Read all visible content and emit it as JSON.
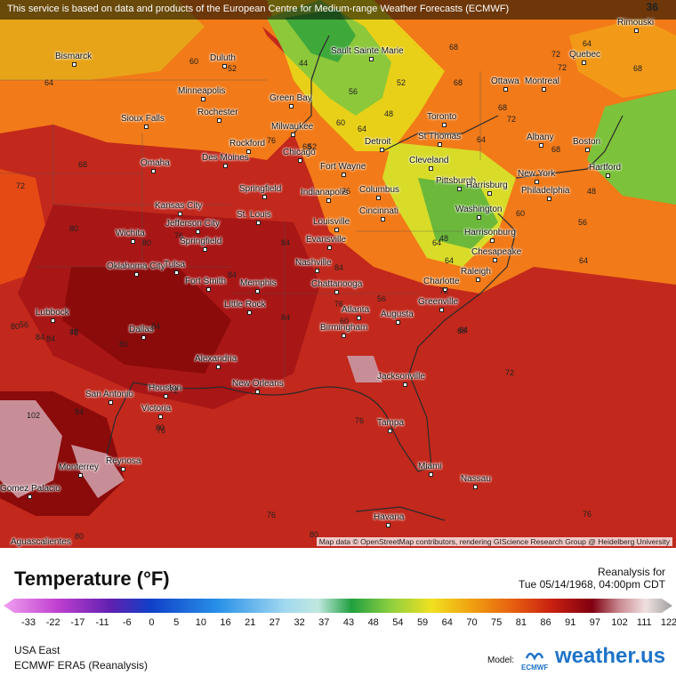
{
  "banner": "This service is based on data and products of the European Centre for Medium-range Weather Forecasts (ECMWF)",
  "corner_value": "36",
  "attribution": "Map data © OpenStreetMap contributors, rendering GIScience Research Group @ Heidelberg University",
  "colors": {
    "hot_dark": "#8b0a0a",
    "hot": "#c2281c",
    "warm": "#e64a14",
    "orange": "#f27a18",
    "yellow": "#e8d018",
    "green": "#3fa83a",
    "pink": "#c88e97"
  },
  "cities": [
    {
      "name": "Bismarck"
    },
    {
      "name": "Duluth"
    },
    {
      "name": "Sault Sainte Marie"
    },
    {
      "name": "Rimouski"
    },
    {
      "name": "Quebec"
    },
    {
      "name": "Ottawa"
    },
    {
      "name": "Montreal"
    },
    {
      "name": "Minneapolis"
    },
    {
      "name": "Green Bay"
    },
    {
      "name": "Rochester"
    },
    {
      "name": "Milwaukee"
    },
    {
      "name": "Toronto"
    },
    {
      "name": "Sioux Falls"
    },
    {
      "name": "Rockford"
    },
    {
      "name": "Chicago"
    },
    {
      "name": "Detroit"
    },
    {
      "name": "St Thomas"
    },
    {
      "name": "Albany"
    },
    {
      "name": "Boston"
    },
    {
      "name": "Des Moines"
    },
    {
      "name": "Omaha"
    },
    {
      "name": "Fort Wayne"
    },
    {
      "name": "Cleveland"
    },
    {
      "name": "Hartford"
    },
    {
      "name": "New York"
    },
    {
      "name": "Springfield"
    },
    {
      "name": "Indianapolis"
    },
    {
      "name": "Columbus"
    },
    {
      "name": "Pittsburgh"
    },
    {
      "name": "Harrisburg"
    },
    {
      "name": "Philadelphia"
    },
    {
      "name": "Kansas City"
    },
    {
      "name": "Jefferson City"
    },
    {
      "name": "St. Louis"
    },
    {
      "name": "Cincinnati"
    },
    {
      "name": "Washington"
    },
    {
      "name": "Louisville"
    },
    {
      "name": "Wichita"
    },
    {
      "name": "Springfield"
    },
    {
      "name": "Evansville"
    },
    {
      "name": "Harrisonburg"
    },
    {
      "name": "Chesapeake"
    },
    {
      "name": "Oklahoma City"
    },
    {
      "name": "Tulsa"
    },
    {
      "name": "Nashville"
    },
    {
      "name": "Raleigh"
    },
    {
      "name": "Fort Smith"
    },
    {
      "name": "Memphis"
    },
    {
      "name": "Chattanooga"
    },
    {
      "name": "Charlotte"
    },
    {
      "name": "Greenville"
    },
    {
      "name": "Lubbock"
    },
    {
      "name": "Little Rock"
    },
    {
      "name": "Atlanta"
    },
    {
      "name": "Augusta"
    },
    {
      "name": "Dallas"
    },
    {
      "name": "Birmingham"
    },
    {
      "name": "Alexandria"
    },
    {
      "name": "San Antonio"
    },
    {
      "name": "Houston"
    },
    {
      "name": "New Orleans"
    },
    {
      "name": "Jacksonville"
    },
    {
      "name": "Victoria"
    },
    {
      "name": "Tampa"
    },
    {
      "name": "Monterrey"
    },
    {
      "name": "Reynosa"
    },
    {
      "name": "Miami"
    },
    {
      "name": "Nassau"
    },
    {
      "name": "Gomez Palacio"
    },
    {
      "name": "Havana"
    },
    {
      "name": "Aguascalientes"
    }
  ],
  "contours": [
    "64",
    "60",
    "52",
    "44",
    "56",
    "52",
    "48",
    "68",
    "68",
    "64",
    "72",
    "68",
    "72",
    "64",
    "68",
    "60",
    "64",
    "68",
    "76",
    "68",
    "68",
    "72",
    "56",
    "60",
    "48",
    "80",
    "64",
    "64",
    "52",
    "76",
    "72",
    "48",
    "56",
    "48",
    "80",
    "76",
    "84",
    "84",
    "56",
    "80",
    "84",
    "76",
    "84",
    "64",
    "72",
    "76",
    "84",
    "84",
    "72",
    "80",
    "60",
    "64",
    "68",
    "84",
    "76",
    "102",
    "76",
    "72",
    "84",
    "80",
    "80",
    "76",
    "80",
    "76"
  ],
  "legend": {
    "title": "Temperature (°F)",
    "reanalysis": "Reanalysis for",
    "date": "Tue 05/14/1968, 04:00pm CDT",
    "ticks": [
      "-33",
      "-22",
      "-17",
      "-11",
      "-6",
      "0",
      "5",
      "10",
      "16",
      "21",
      "27",
      "32",
      "37",
      "43",
      "48",
      "54",
      "59",
      "64",
      "70",
      "75",
      "81",
      "86",
      "91",
      "97",
      "102",
      "111",
      "122"
    ],
    "region": "USA East",
    "model": "ECMWF ERA5 (Reanalysis)",
    "model_label": "Model:",
    "ecmwf_logo": "ECMWF",
    "brand": "weather.us"
  }
}
